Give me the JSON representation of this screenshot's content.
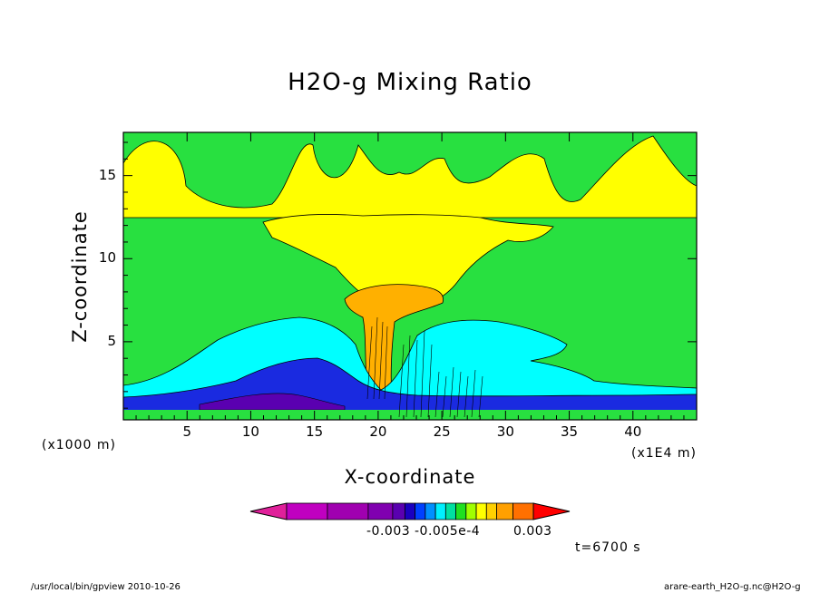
{
  "chart_data": {
    "type": "heatmap",
    "title": "H2O-g Mixing Ratio",
    "xlabel": "X-coordinate",
    "ylabel": "Z-coordinate",
    "x_unit": "(x1E4 m)",
    "y_unit": "(x1000 m)",
    "xlim": [
      0,
      45
    ],
    "ylim": [
      0.3,
      17.6
    ],
    "x_ticks": [
      5,
      10,
      15,
      20,
      25,
      30,
      35,
      40
    ],
    "y_ticks": [
      5,
      10,
      15
    ],
    "colorbar": {
      "colors": [
        "#c000c0",
        "#a000b0",
        "#8000b0",
        "#5a00b0",
        "#1a00c0",
        "#0040ff",
        "#0090ff",
        "#00f0ff",
        "#00e0a0",
        "#20e020",
        "#a0ff00",
        "#ffff00",
        "#ffd000",
        "#ffa000",
        "#ff7000",
        "#ff0000"
      ],
      "labels": [
        "-0.003",
        "-0.005e-4",
        "0.003"
      ]
    },
    "regions": [
      {
        "name": "background",
        "value": "green"
      },
      {
        "name": "upper-layer",
        "value": "yellow"
      },
      {
        "name": "anvil",
        "value": "yellow"
      },
      {
        "name": "core",
        "value": "orange"
      },
      {
        "name": "lower-moist",
        "value": "cyan"
      },
      {
        "name": "boundary-layer",
        "value": "blue"
      }
    ],
    "time_label": "t=6700 s"
  },
  "footer": {
    "left": "/usr/local/bin/gpview  2010-10-26",
    "right": "arare-earth_H2O-g.nc@H2O-g"
  }
}
